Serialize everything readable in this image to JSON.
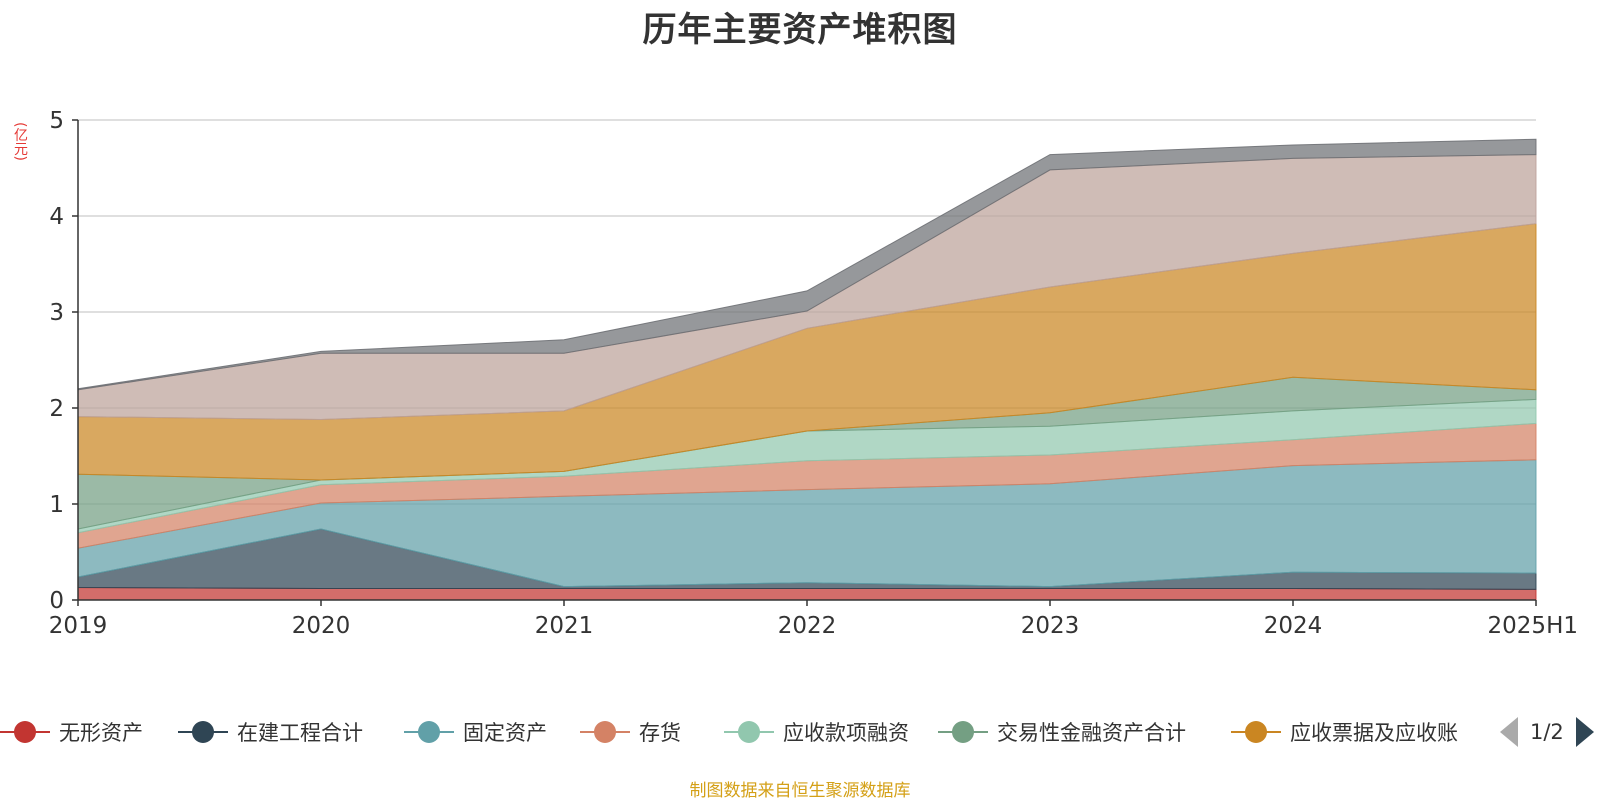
{
  "chart_data": {
    "type": "area",
    "title": "历年主要资产堆积图",
    "unit": "(亿元)",
    "ylim": [
      0,
      5
    ],
    "yticks": [
      "0",
      "1",
      "2",
      "3",
      "4",
      "5"
    ],
    "categories": [
      "2019",
      "2020",
      "2021",
      "2022",
      "2023",
      "2024",
      "2025H1"
    ],
    "series": [
      {
        "name": "无形资产",
        "color": "#c23531",
        "values": [
          0.13,
          0.12,
          0.12,
          0.12,
          0.12,
          0.12,
          0.11
        ]
      },
      {
        "name": "在建工程合计",
        "color": "#2f4554",
        "values": [
          0.11,
          0.62,
          0.02,
          0.06,
          0.02,
          0.17,
          0.17
        ]
      },
      {
        "name": "固定资产",
        "color": "#61a0a8",
        "values": [
          0.3,
          0.27,
          0.94,
          0.97,
          1.07,
          1.11,
          1.18
        ]
      },
      {
        "name": "存货",
        "color": "#d48265",
        "values": [
          0.16,
          0.19,
          0.21,
          0.3,
          0.3,
          0.27,
          0.38
        ]
      },
      {
        "name": "应收款项融资",
        "color": "#91c7ae",
        "values": [
          0.04,
          0.05,
          0.05,
          0.31,
          0.3,
          0.3,
          0.25
        ]
      },
      {
        "name": "交易性金融资产合计",
        "color": "#749f83",
        "values": [
          0.57,
          0.0,
          0.0,
          0.0,
          0.14,
          0.35,
          0.1
        ]
      },
      {
        "name": "应收票据及应收账",
        "color": "#ca8622",
        "values": [
          0.6,
          0.63,
          0.63,
          1.07,
          1.31,
          1.29,
          1.73
        ]
      },
      {
        "name": "",
        "color": "#bda29a",
        "values": [
          0.28,
          0.69,
          0.6,
          0.18,
          1.22,
          0.99,
          0.72
        ]
      },
      {
        "name": "",
        "color": "#6e7074",
        "values": [
          0.01,
          0.02,
          0.14,
          0.21,
          0.16,
          0.14,
          0.16
        ]
      }
    ]
  },
  "legend": {
    "items": [
      "无形资产",
      "在建工程合计",
      "固定资产",
      "存货",
      "应收款项融资",
      "交易性金融资产合计",
      "应收票据及应收账"
    ],
    "page": "1/2"
  },
  "source_note": "制图数据来自恒生聚源数据库"
}
